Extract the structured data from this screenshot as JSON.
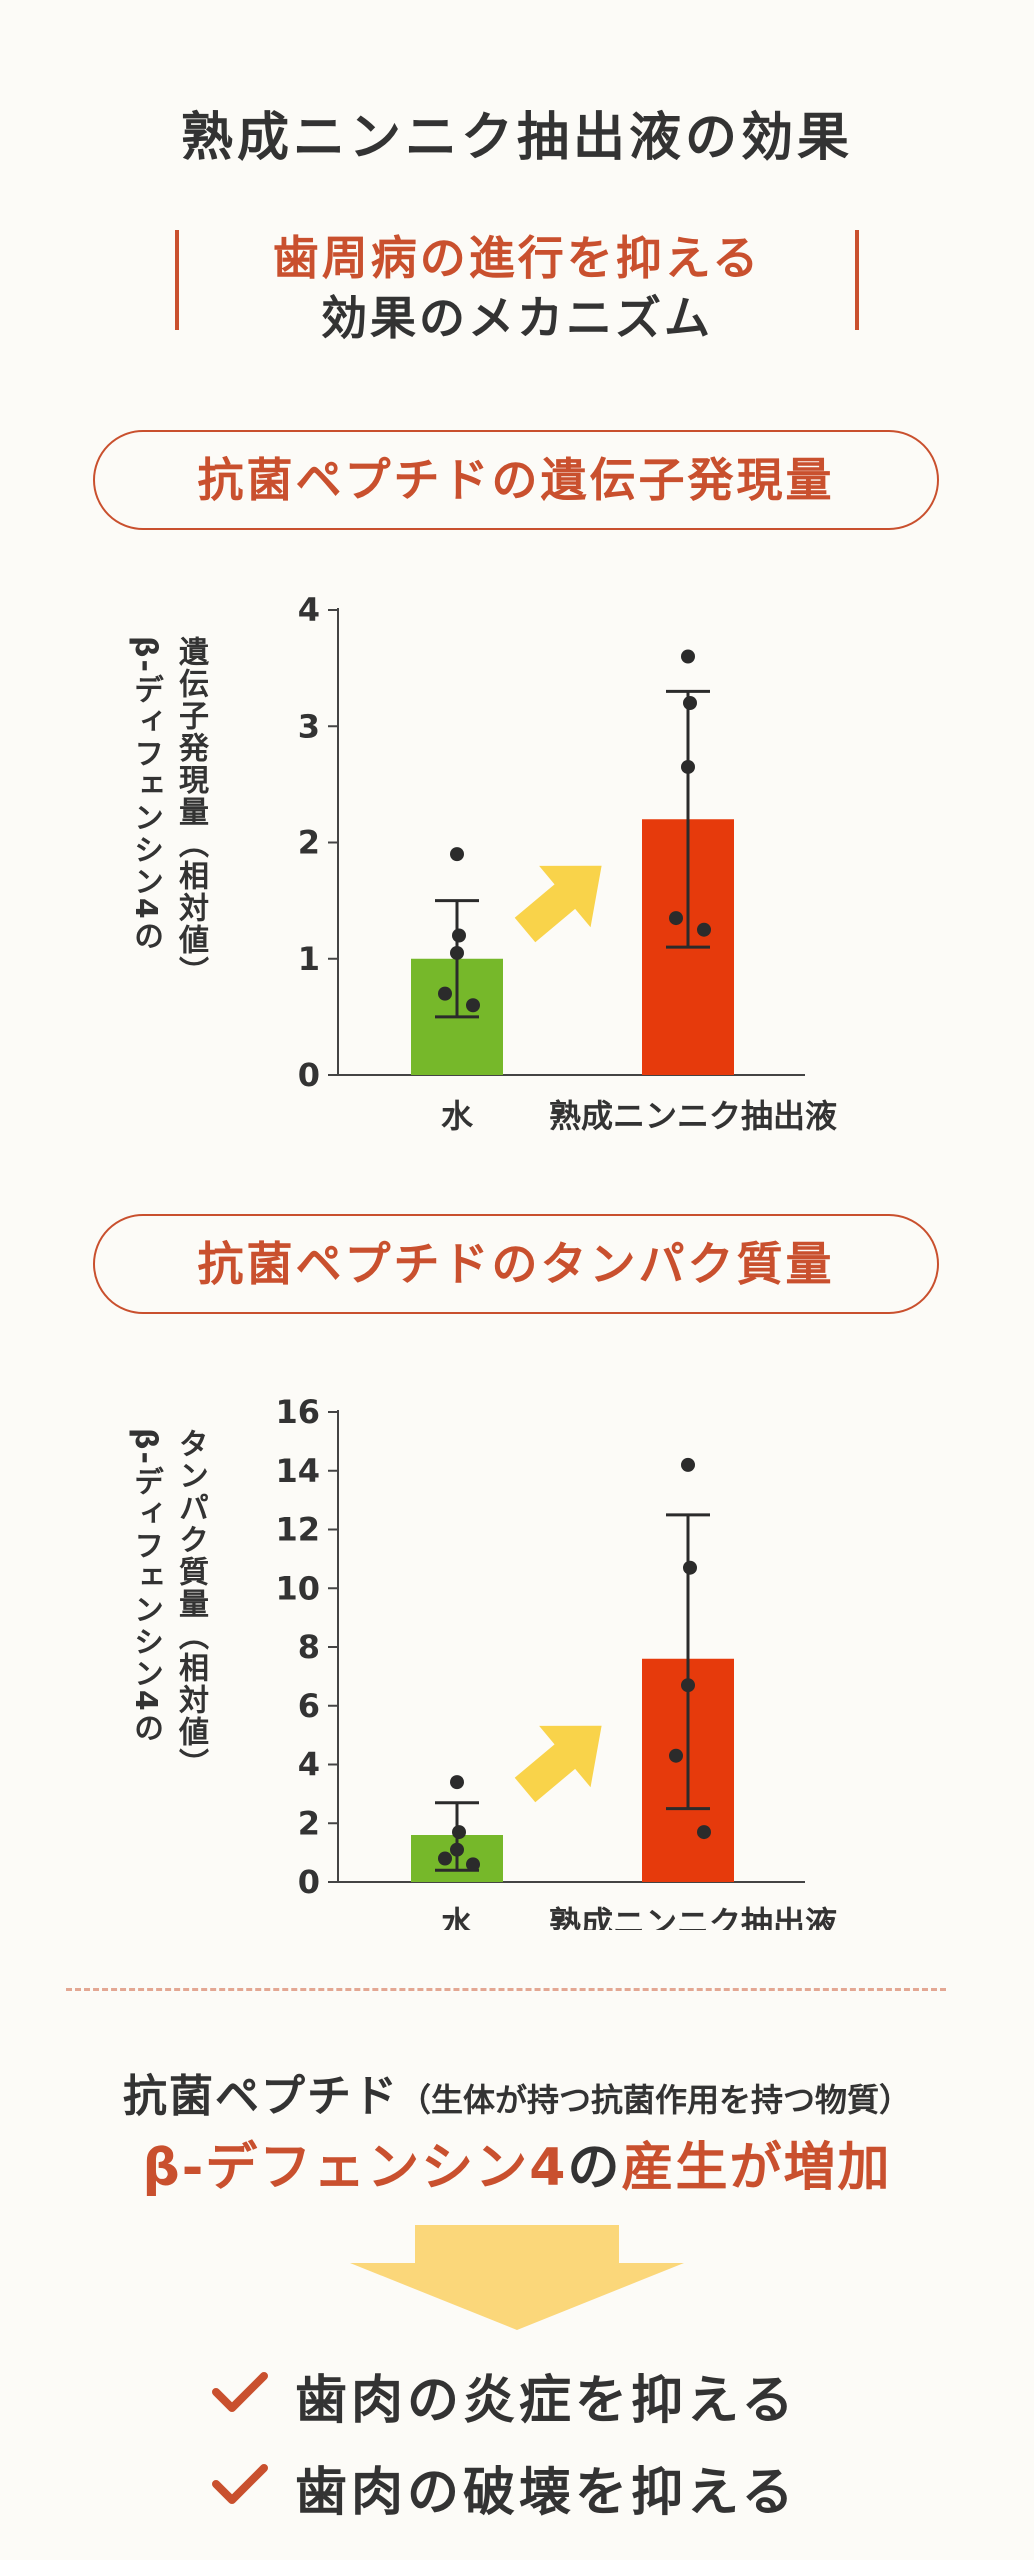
{
  "title": "熟成ニンニク抽出液の効果",
  "mechanism": {
    "line1": "歯周病の進行を抑える",
    "line2": "効果のメカニズム"
  },
  "chart_data": [
    {
      "type": "bar",
      "title": "抗菌ペプチドの遺伝子発現量",
      "ylabel_line1": "β-ディフェンシン4の",
      "ylabel_line2": "遺伝子発現量（相対値）",
      "categories": [
        "水",
        "熟成ニンニク抽出液"
      ],
      "values": [
        1.0,
        2.2
      ],
      "error_low": [
        0.5,
        1.1
      ],
      "error_high": [
        1.5,
        3.3
      ],
      "points": [
        [
          1.9,
          1.2,
          1.05,
          0.7,
          0.6
        ],
        [
          3.6,
          3.2,
          2.65,
          1.35,
          1.25
        ]
      ],
      "bar_colors": [
        "#76b82a",
        "#e63a0c"
      ],
      "ylim": [
        0,
        4
      ],
      "yticks": [
        "0",
        "1",
        "2",
        "3",
        "4"
      ],
      "ytick_values": [
        0,
        1,
        2,
        3,
        4
      ],
      "grid": false
    },
    {
      "type": "bar",
      "title": "抗菌ペプチドのタンパク質量",
      "ylabel_line1": "β-ディフェンシン4の",
      "ylabel_line2": "タンパク質量（相対値）",
      "categories": [
        "水",
        "熟成ニンニク抽出液"
      ],
      "values": [
        1.6,
        7.6
      ],
      "error_low": [
        0.4,
        2.5
      ],
      "error_high": [
        2.7,
        12.5
      ],
      "points": [
        [
          3.4,
          1.7,
          1.1,
          0.8,
          0.6
        ],
        [
          14.2,
          10.7,
          6.7,
          4.3,
          1.7
        ]
      ],
      "bar_colors": [
        "#76b82a",
        "#e63a0c"
      ],
      "ylim": [
        0,
        16
      ],
      "yticks": [
        "0",
        "2",
        "4",
        "6",
        "8",
        "10",
        "12",
        "14",
        "16"
      ],
      "ytick_values": [
        0,
        2,
        4,
        6,
        8,
        10,
        12,
        14,
        16
      ],
      "grid": false
    }
  ],
  "summary": {
    "line1_main": "抗菌ペプチド",
    "line1_note": "（生体が持つ抗菌作用を持つ物質）",
    "line2_a": "β-デフェンシン4",
    "line2_b": "の",
    "line2_c": "産生が増加"
  },
  "checks": [
    "歯肉の炎症を抑える",
    "歯肉の破壊を抑える"
  ],
  "colors": {
    "accent": "#c9502e",
    "water_bar": "#76b82a",
    "extract_bar": "#e63a0c",
    "arrow": "#f9d34a",
    "down_arrow": "#fbd77a"
  }
}
